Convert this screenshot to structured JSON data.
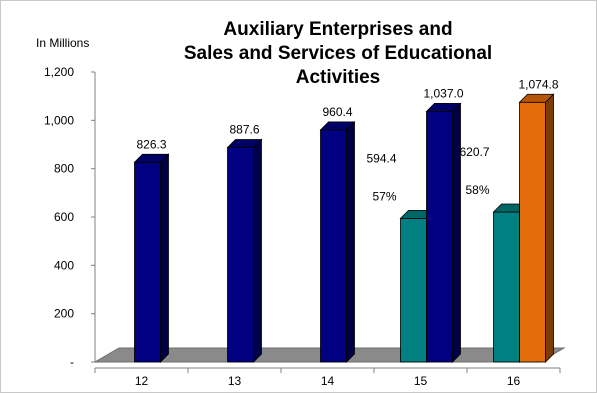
{
  "chart_data": {
    "type": "bar",
    "title_lines": [
      "Auxiliary Enterprises and",
      "Sales and Services of Educational",
      "Activities"
    ],
    "unit_label": "In Millions",
    "categories": [
      "12",
      "13",
      "14",
      "15",
      "16"
    ],
    "ylim": [
      0,
      1200
    ],
    "yticks": [
      {
        "value": 0,
        "label": "-"
      },
      {
        "value": 200,
        "label": "200"
      },
      {
        "value": 400,
        "label": "400"
      },
      {
        "value": 600,
        "label": "600"
      },
      {
        "value": 800,
        "label": "800"
      },
      {
        "value": 1000,
        "label": "1,000"
      },
      {
        "value": 1200,
        "label": "1,200"
      }
    ],
    "grid": false,
    "legend": "none",
    "series": [
      {
        "values": [
          null,
          null,
          null,
          594.4,
          620.7
        ],
        "labels": [
          null,
          null,
          null,
          "594.4",
          "620.7"
        ],
        "percent_labels": [
          null,
          null,
          null,
          "57%",
          "58%"
        ],
        "color": "#008080"
      },
      {
        "values": [
          826.3,
          887.6,
          960.4,
          1037.0,
          null
        ],
        "labels": [
          "826.3",
          "887.6",
          "960.4",
          "1,037.0",
          null
        ],
        "color": "#000080"
      },
      {
        "values": [
          null,
          null,
          null,
          null,
          1074.8
        ],
        "labels": [
          null,
          null,
          null,
          null,
          "1,074.8"
        ],
        "color": "#E46C0A"
      }
    ]
  }
}
